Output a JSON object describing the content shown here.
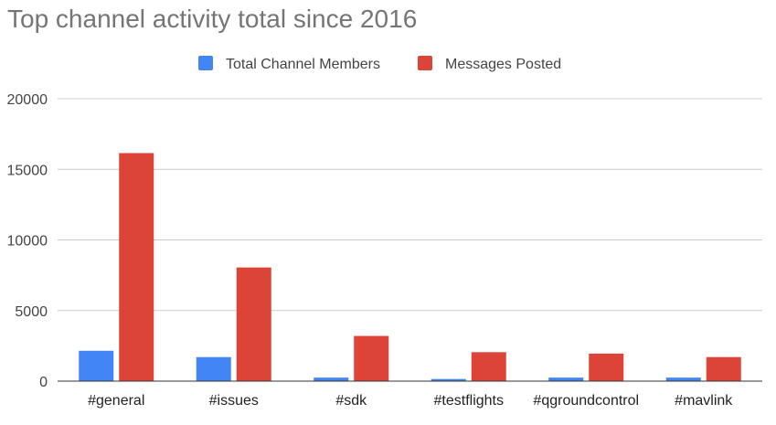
{
  "chart_data": {
    "type": "bar",
    "title": "Top channel activity total since 2016",
    "categories": [
      "#general",
      "#issues",
      "#sdk",
      "#testflights",
      "#qgroundcontrol",
      "#mavlink"
    ],
    "series": [
      {
        "name": "Total Channel Members",
        "color": "#4285f4",
        "values": [
          2150,
          1700,
          250,
          150,
          250,
          250
        ]
      },
      {
        "name": "Messages Posted",
        "color": "#db4437",
        "values": [
          16150,
          8050,
          3200,
          2050,
          1950,
          1700
        ]
      }
    ],
    "ylim": [
      0,
      20000
    ],
    "yticks": [
      0,
      5000,
      10000,
      15000,
      20000
    ],
    "yticklabels": [
      "0",
      "5000",
      "10000",
      "15000",
      "20000"
    ],
    "grid": true,
    "legend_position": "top-center"
  }
}
